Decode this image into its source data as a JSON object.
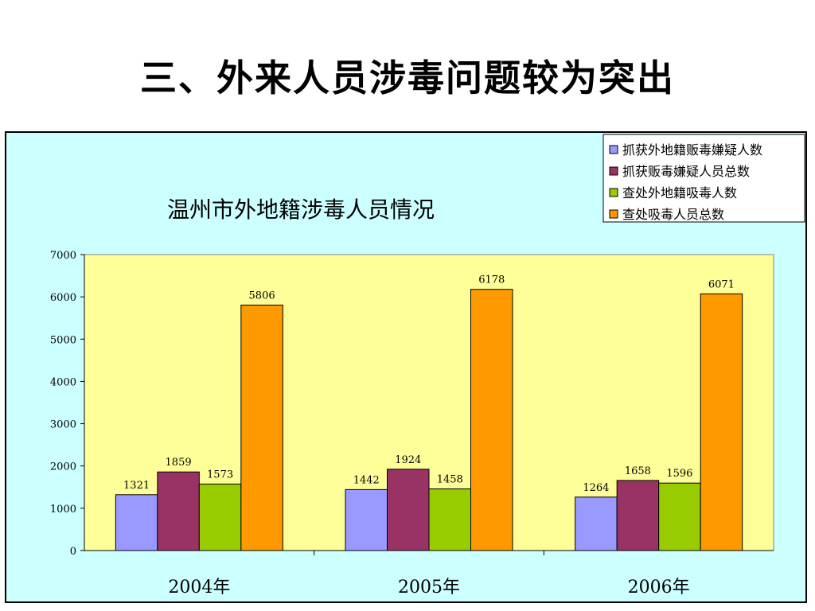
{
  "slide": {
    "title": "三、外来人员涉毒问题较为突出"
  },
  "chart_data": {
    "type": "bar",
    "title": "温州市外地籍涉毒人员情况",
    "categories": [
      "2004年",
      "2005年",
      "2006年"
    ],
    "series": [
      {
        "name": "抓获外地籍贩毒嫌疑人数",
        "color": "#9999ff",
        "values": [
          1321,
          1442,
          1264
        ]
      },
      {
        "name": "抓获贩毒嫌疑人员总数",
        "color": "#993366",
        "values": [
          1859,
          1924,
          1658
        ]
      },
      {
        "name": "查处外地籍吸毒人数",
        "color": "#99cc00",
        "values": [
          1573,
          1458,
          1596
        ]
      },
      {
        "name": "查处吸毒人员总数",
        "color": "#ff9900",
        "values": [
          5806,
          6178,
          6071
        ]
      }
    ],
    "ylim": [
      0,
      7000
    ],
    "yticks": [
      0,
      1000,
      2000,
      3000,
      4000,
      5000,
      6000,
      7000
    ],
    "plot_background": "#ffff99",
    "chart_background": "#ccffff",
    "legend_position": "top-right",
    "grid": false
  }
}
